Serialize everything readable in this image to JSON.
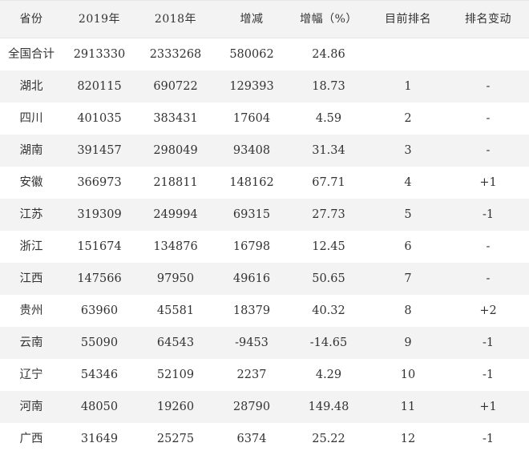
{
  "table": {
    "headers": [
      "省份",
      "2019年",
      "2018年",
      "增减",
      "增幅（%）",
      "目前排名",
      "排名变动"
    ],
    "rows": [
      [
        "全国合计",
        "2913330",
        "2333268",
        "580062",
        "24.86",
        "",
        ""
      ],
      [
        "湖北",
        "820115",
        "690722",
        "129393",
        "18.73",
        "1",
        "-"
      ],
      [
        "四川",
        "401035",
        "383431",
        "17604",
        "4.59",
        "2",
        "-"
      ],
      [
        "湖南",
        "391457",
        "298049",
        "93408",
        "31.34",
        "3",
        "-"
      ],
      [
        "安徽",
        "366973",
        "218811",
        "148162",
        "67.71",
        "4",
        "+1"
      ],
      [
        "江苏",
        "319309",
        "249994",
        "69315",
        "27.73",
        "5",
        "-1"
      ],
      [
        "浙江",
        "151674",
        "134876",
        "16798",
        "12.45",
        "6",
        "-"
      ],
      [
        "江西",
        "147566",
        "97950",
        "49616",
        "50.65",
        "7",
        "-"
      ],
      [
        "贵州",
        "63960",
        "45581",
        "18379",
        "40.32",
        "8",
        "+2"
      ],
      [
        "云南",
        "55090",
        "64543",
        "-9453",
        "-14.65",
        "9",
        "-1"
      ],
      [
        "辽宁",
        "54346",
        "52109",
        "2237",
        "4.29",
        "10",
        "-1"
      ],
      [
        "河南",
        "48050",
        "19260",
        "28790",
        "149.48",
        "11",
        "+1"
      ],
      [
        "广西",
        "31649",
        "25275",
        "6374",
        "25.22",
        "12",
        "-1"
      ]
    ]
  }
}
